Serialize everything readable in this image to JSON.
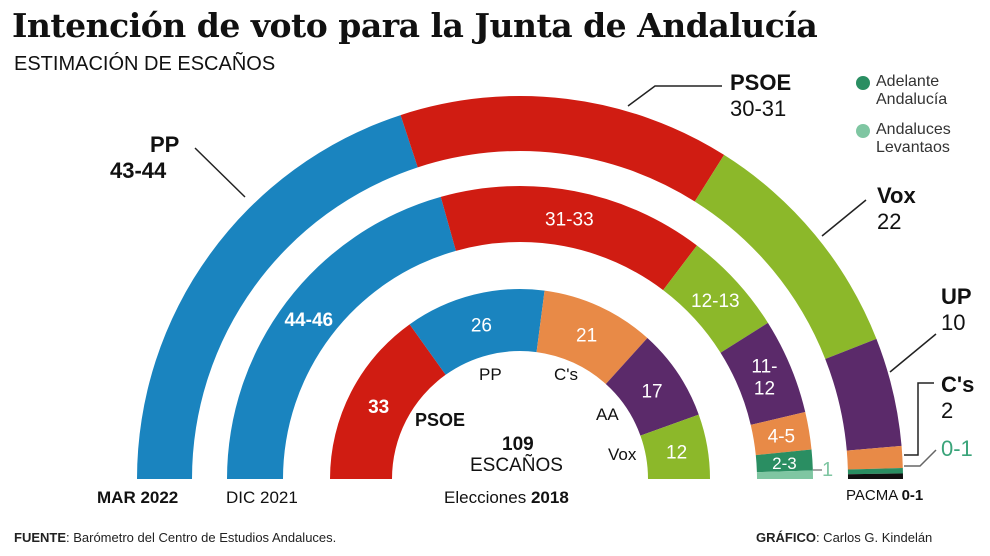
{
  "title": "Intención de voto para la Junta de Andalucía",
  "subtitle": "ESTIMACIÓN DE ESCAÑOS",
  "colors": {
    "PP": "#1a84bf",
    "PSOE": "#d01c12",
    "Vox": "#8cb82a",
    "UP": "#5b2a6a",
    "Cs": "#e88a47",
    "AA": "#2a8e62",
    "Levantaos": "#7fc6a2",
    "PACMA": "#111111"
  },
  "legend": [
    {
      "label": "Adelante Andalucía",
      "color": "#2a8e62"
    },
    {
      "label": "Andaluces Levantaos",
      "color": "#7fc6a2"
    }
  ],
  "chart_data": [
    {
      "type": "pie",
      "subtype": "semicircle",
      "label": "MAR 2022",
      "total_seats": 109,
      "slices": [
        {
          "party": "PP",
          "display": "43-44",
          "min": 43,
          "max": 44,
          "color": "#1a84bf"
        },
        {
          "party": "PSOE",
          "display": "30-31",
          "min": 30,
          "max": 31,
          "color": "#d01c12"
        },
        {
          "party": "Vox",
          "display": "22",
          "min": 22,
          "max": 22,
          "color": "#8cb82a"
        },
        {
          "party": "UP",
          "display": "10",
          "min": 10,
          "max": 10,
          "color": "#5b2a6a"
        },
        {
          "party": "C's",
          "display": "2",
          "min": 2,
          "max": 2,
          "color": "#e88a47"
        },
        {
          "party": "Adelante Andalucía",
          "display": "0-1",
          "min": 0,
          "max": 1,
          "color": "#2a8e62"
        },
        {
          "party": "PACMA",
          "display": "0-1",
          "min": 0,
          "max": 1,
          "color": "#111111"
        }
      ]
    },
    {
      "type": "pie",
      "subtype": "semicircle",
      "label": "DIC 2021",
      "total_seats": 109,
      "slices": [
        {
          "party": "PP",
          "display": "44-46",
          "min": 44,
          "max": 46,
          "color": "#1a84bf"
        },
        {
          "party": "PSOE",
          "display": "31-33",
          "min": 31,
          "max": 33,
          "color": "#d01c12"
        },
        {
          "party": "Vox",
          "display": "12-13",
          "min": 12,
          "max": 13,
          "color": "#8cb82a"
        },
        {
          "party": "UP",
          "display": "11-12",
          "min": 11,
          "max": 12,
          "color": "#5b2a6a"
        },
        {
          "party": "C's",
          "display": "4-5",
          "min": 4,
          "max": 5,
          "color": "#e88a47"
        },
        {
          "party": "Adelante Andalucía",
          "display": "2-3",
          "min": 2,
          "max": 3,
          "color": "#2a8e62"
        },
        {
          "party": "Andaluces Levantaos",
          "display": "1",
          "min": 1,
          "max": 1,
          "color": "#7fc6a2"
        }
      ]
    },
    {
      "type": "pie",
      "subtype": "semicircle",
      "label_prefix": "Elecciones",
      "label_year": "2018",
      "total_seats": 109,
      "center_number": "109",
      "center_label": "ESCAÑOS",
      "slices": [
        {
          "party": "PSOE",
          "display": "33",
          "min": 33,
          "max": 33,
          "color": "#d01c12"
        },
        {
          "party": "PP",
          "display": "26",
          "min": 26,
          "max": 26,
          "color": "#1a84bf"
        },
        {
          "party": "C's",
          "display": "21",
          "min": 21,
          "max": 21,
          "color": "#e88a47"
        },
        {
          "party": "AA",
          "display": "17",
          "min": 17,
          "max": 17,
          "color": "#5b2a6a"
        },
        {
          "party": "Vox",
          "display": "12",
          "min": 12,
          "max": 12,
          "color": "#8cb82a"
        }
      ]
    }
  ],
  "outer_labels": {
    "pp_name": "PP",
    "pp_val": "43-44",
    "psoe_name": "PSOE",
    "psoe_val": "30-31",
    "vox_name": "Vox",
    "vox_val": "22",
    "up_name": "UP",
    "up_val": "10",
    "cs_name": "C's",
    "cs_val": "2",
    "aa_val": "0-1",
    "pacma_name": "PACMA",
    "pacma_val": "0-1"
  },
  "footer": {
    "source_label": "FUENTE",
    "source_text": ": Barómetro del Centro de Estudios Andaluces.",
    "credit_label": "GRÁFICO",
    "credit_text": ": Carlos G. Kindelán"
  }
}
